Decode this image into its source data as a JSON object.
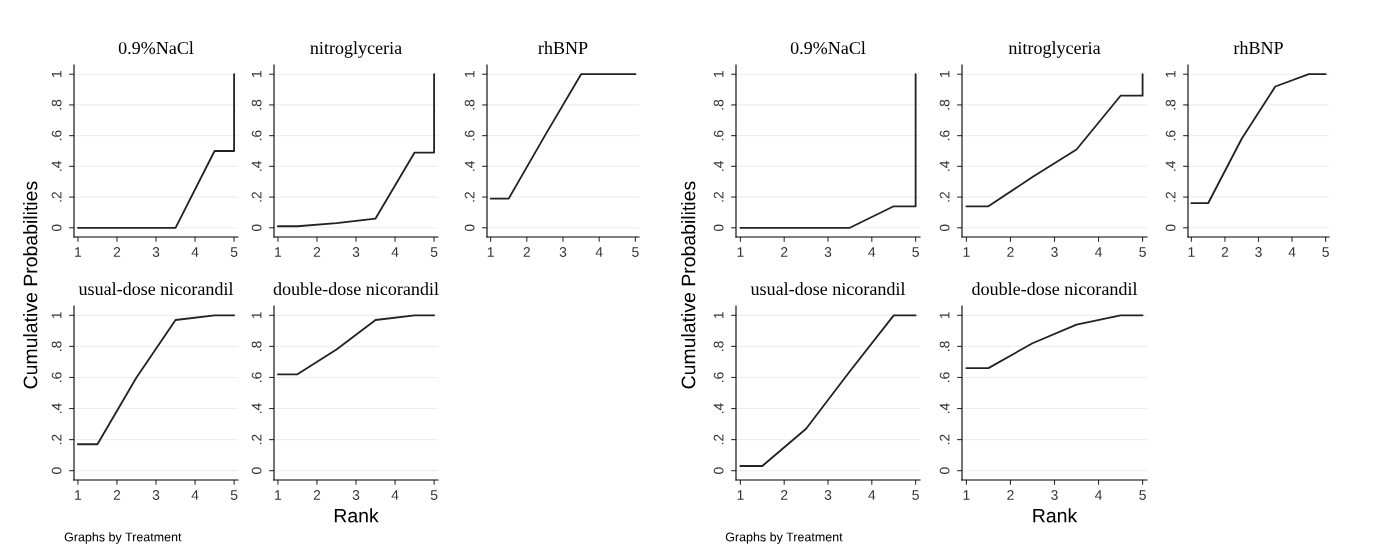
{
  "chart_data": [
    {
      "type": "line",
      "title": "0.9%NaCl",
      "x": [
        1,
        1.5,
        2.5,
        3.5,
        4.5,
        5,
        5
      ],
      "values": [
        0,
        0,
        0,
        0,
        0.5,
        0.5,
        1
      ],
      "xlim": [
        0.9,
        5.1
      ],
      "ylim": [
        -0.06,
        1.06
      ],
      "xticks": [
        1,
        2,
        3,
        4,
        5
      ],
      "yticks": [
        {
          "value": 0,
          "label": "0"
        },
        {
          "value": 0.2,
          "label": ".2"
        },
        {
          "value": 0.4,
          "label": ".4"
        },
        {
          "value": 0.6,
          "label": ".6"
        },
        {
          "value": 0.8,
          "label": ".8"
        },
        {
          "value": 1,
          "label": "1"
        }
      ],
      "grid": "y",
      "color": "#222222"
    },
    {
      "type": "line",
      "title": "nitroglyceria",
      "x": [
        1,
        1.5,
        2.5,
        3.5,
        4.5,
        5,
        5
      ],
      "values": [
        0.01,
        0.01,
        0.03,
        0.06,
        0.49,
        0.49,
        1
      ],
      "xlim": [
        0.9,
        5.1
      ],
      "ylim": [
        -0.06,
        1.06
      ],
      "xticks": [
        1,
        2,
        3,
        4,
        5
      ],
      "yticks": [
        {
          "value": 0,
          "label": "0"
        },
        {
          "value": 0.2,
          "label": ".2"
        },
        {
          "value": 0.4,
          "label": ".4"
        },
        {
          "value": 0.6,
          "label": ".6"
        },
        {
          "value": 0.8,
          "label": ".8"
        },
        {
          "value": 1,
          "label": "1"
        }
      ],
      "grid": "y",
      "color": "#222222"
    },
    {
      "type": "line",
      "title": "rhBNP",
      "x": [
        1,
        1.5,
        2.5,
        3.5,
        4.5,
        5,
        5
      ],
      "values": [
        0.19,
        0.19,
        0.6,
        1,
        1,
        1,
        1
      ],
      "xlim": [
        0.9,
        5.1
      ],
      "ylim": [
        -0.06,
        1.06
      ],
      "xticks": [
        1,
        2,
        3,
        4,
        5
      ],
      "yticks": [
        {
          "value": 0,
          "label": "0"
        },
        {
          "value": 0.2,
          "label": ".2"
        },
        {
          "value": 0.4,
          "label": ".4"
        },
        {
          "value": 0.6,
          "label": ".6"
        },
        {
          "value": 0.8,
          "label": ".8"
        },
        {
          "value": 1,
          "label": "1"
        }
      ],
      "grid": "y",
      "color": "#222222"
    },
    {
      "type": "line",
      "title": "usual-dose nicorandil",
      "ylabel": "Cumulative Probabilities",
      "x": [
        1,
        1.5,
        2.5,
        3.5,
        4.5,
        5,
        5
      ],
      "values": [
        0.17,
        0.17,
        0.6,
        0.97,
        1,
        1,
        1
      ],
      "xlim": [
        0.9,
        5.1
      ],
      "ylim": [
        -0.06,
        1.06
      ],
      "xticks": [
        1,
        2,
        3,
        4,
        5
      ],
      "yticks": [
        {
          "value": 0,
          "label": "0"
        },
        {
          "value": 0.2,
          "label": ".2"
        },
        {
          "value": 0.4,
          "label": ".4"
        },
        {
          "value": 0.6,
          "label": ".6"
        },
        {
          "value": 0.8,
          "label": ".8"
        },
        {
          "value": 1,
          "label": "1"
        }
      ],
      "grid": "y",
      "color": "#222222"
    },
    {
      "type": "line",
      "title": "double-dose nicorandil",
      "xlabel": "Rank",
      "annotations": [
        "Graphs by Treatment"
      ],
      "x": [
        1,
        1.5,
        2.5,
        3.5,
        4.5,
        5,
        5
      ],
      "values": [
        0.62,
        0.62,
        0.78,
        0.97,
        1,
        1,
        1
      ],
      "xlim": [
        0.9,
        5.1
      ],
      "ylim": [
        -0.06,
        1.06
      ],
      "xticks": [
        1,
        2,
        3,
        4,
        5
      ],
      "yticks": [
        {
          "value": 0,
          "label": "0"
        },
        {
          "value": 0.2,
          "label": ".2"
        },
        {
          "value": 0.4,
          "label": ".4"
        },
        {
          "value": 0.6,
          "label": ".6"
        },
        {
          "value": 0.8,
          "label": ".8"
        },
        {
          "value": 1,
          "label": "1"
        }
      ],
      "grid": "y",
      "color": "#222222"
    },
    {
      "type": "line",
      "title": "0.9%NaCl",
      "x": [
        1,
        1.5,
        2.5,
        3.5,
        4.5,
        5,
        5
      ],
      "values": [
        0,
        0,
        0,
        0,
        0.14,
        0.14,
        1
      ],
      "xlim": [
        0.9,
        5.1
      ],
      "ylim": [
        -0.06,
        1.06
      ],
      "xticks": [
        1,
        2,
        3,
        4,
        5
      ],
      "yticks": [
        {
          "value": 0,
          "label": "0"
        },
        {
          "value": 0.2,
          "label": ".2"
        },
        {
          "value": 0.4,
          "label": ".4"
        },
        {
          "value": 0.6,
          "label": ".6"
        },
        {
          "value": 0.8,
          "label": ".8"
        },
        {
          "value": 1,
          "label": "1"
        }
      ],
      "grid": "y",
      "color": "#222222"
    },
    {
      "type": "line",
      "title": "nitroglyceria",
      "x": [
        1,
        1.5,
        2.5,
        3.5,
        4.5,
        5,
        5
      ],
      "values": [
        0.14,
        0.14,
        0.33,
        0.51,
        0.86,
        0.86,
        1
      ],
      "xlim": [
        0.9,
        5.1
      ],
      "ylim": [
        -0.06,
        1.06
      ],
      "xticks": [
        1,
        2,
        3,
        4,
        5
      ],
      "yticks": [
        {
          "value": 0,
          "label": "0"
        },
        {
          "value": 0.2,
          "label": ".2"
        },
        {
          "value": 0.4,
          "label": ".4"
        },
        {
          "value": 0.6,
          "label": ".6"
        },
        {
          "value": 0.8,
          "label": ".8"
        },
        {
          "value": 1,
          "label": "1"
        }
      ],
      "grid": "y",
      "color": "#222222"
    },
    {
      "type": "line",
      "title": "rhBNP",
      "x": [
        1,
        1.5,
        2.5,
        3.5,
        4.5,
        5,
        5
      ],
      "values": [
        0.16,
        0.16,
        0.58,
        0.92,
        1,
        1,
        1
      ],
      "xlim": [
        0.9,
        5.1
      ],
      "ylim": [
        -0.06,
        1.06
      ],
      "xticks": [
        1,
        2,
        3,
        4,
        5
      ],
      "yticks": [
        {
          "value": 0,
          "label": "0"
        },
        {
          "value": 0.2,
          "label": ".2"
        },
        {
          "value": 0.4,
          "label": ".4"
        },
        {
          "value": 0.6,
          "label": ".6"
        },
        {
          "value": 0.8,
          "label": ".8"
        },
        {
          "value": 1,
          "label": "1"
        }
      ],
      "grid": "y",
      "color": "#222222"
    },
    {
      "type": "line",
      "title": "usual-dose nicorandil",
      "ylabel": "Cumulative Probabilities",
      "x": [
        1,
        1.5,
        2.5,
        3.5,
        4.5,
        5,
        5
      ],
      "values": [
        0.03,
        0.03,
        0.27,
        0.64,
        1,
        1,
        1
      ],
      "xlim": [
        0.9,
        5.1
      ],
      "ylim": [
        -0.06,
        1.06
      ],
      "xticks": [
        1,
        2,
        3,
        4,
        5
      ],
      "yticks": [
        {
          "value": 0,
          "label": "0"
        },
        {
          "value": 0.2,
          "label": ".2"
        },
        {
          "value": 0.4,
          "label": ".4"
        },
        {
          "value": 0.6,
          "label": ".6"
        },
        {
          "value": 0.8,
          "label": ".8"
        },
        {
          "value": 1,
          "label": "1"
        }
      ],
      "grid": "y",
      "color": "#222222"
    },
    {
      "type": "line",
      "title": "double-dose nicorandil",
      "xlabel": "Rank",
      "annotations": [
        "Graphs by Treatment"
      ],
      "x": [
        1,
        1.5,
        2.5,
        3.5,
        4.5,
        5,
        5
      ],
      "values": [
        0.66,
        0.66,
        0.82,
        0.94,
        1,
        1,
        1
      ],
      "xlim": [
        0.9,
        5.1
      ],
      "ylim": [
        -0.06,
        1.06
      ],
      "xticks": [
        1,
        2,
        3,
        4,
        5
      ],
      "yticks": [
        {
          "value": 0,
          "label": "0"
        },
        {
          "value": 0.2,
          "label": ".2"
        },
        {
          "value": 0.4,
          "label": ".4"
        },
        {
          "value": 0.6,
          "label": ".6"
        },
        {
          "value": 0.8,
          "label": ".8"
        },
        {
          "value": 1,
          "label": "1"
        }
      ],
      "grid": "y",
      "color": "#222222"
    }
  ]
}
